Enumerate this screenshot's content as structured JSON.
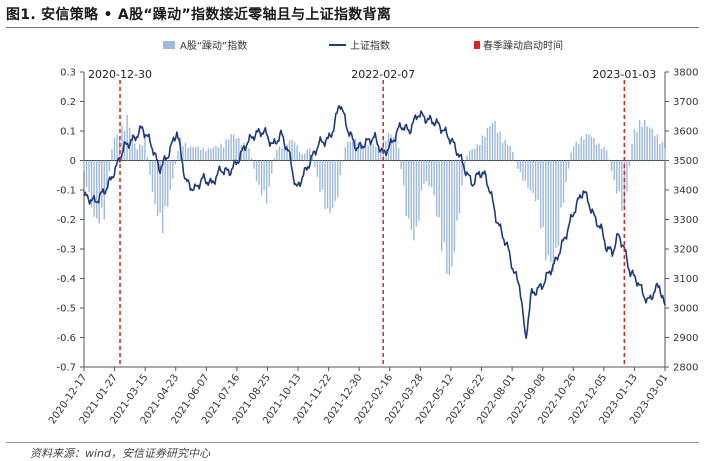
{
  "figure": {
    "title": "图1. 安信策略 • A股“躁动”指数接近零轴且与上证指数背离",
    "source": "资料来源：wind，安信证券研究中心"
  },
  "colors": {
    "bars": "#9db9dd",
    "line": "#1f3a7a",
    "event": "#e02020",
    "axis": "#555555"
  },
  "chart_data": {
    "type": "bar+line",
    "title": "安信策略 • A股“躁动”指数接近零轴且与上证指数背离",
    "legend": [
      "A股“躁动”指数",
      "上证指数",
      "春季躁动启动时间"
    ],
    "x_tick_labels": [
      "2020-12-17",
      "2021-01-27",
      "2021-03-15",
      "2021-04-23",
      "2021-06-07",
      "2021-07-16",
      "2021-08-25",
      "2021-10-13",
      "2021-11-22",
      "2021-12-30",
      "2022-02-16",
      "2022-03-28",
      "2022-05-12",
      "2022-06-22",
      "2022-08-01",
      "2022-09-08",
      "2022-10-26",
      "2022-12-05",
      "2023-01-13",
      "2023-03-01"
    ],
    "left_axis": {
      "label": "A股“躁动”指数",
      "ylim": [
        -0.7,
        0.3
      ],
      "ticks": [
        0.3,
        0.2,
        0.1,
        0,
        -0.1,
        -0.2,
        -0.3,
        -0.4,
        -0.5,
        -0.6,
        -0.7
      ]
    },
    "right_axis": {
      "label": "上证指数",
      "ylim": [
        2800,
        3800
      ],
      "ticks": [
        3800,
        3700,
        3600,
        3500,
        3400,
        3300,
        3200,
        3100,
        3000,
        2900,
        2800
      ]
    },
    "events": [
      {
        "label": "2020-12-30",
        "t": 0.062
      },
      {
        "label": "2022-02-07",
        "t": 0.515
      },
      {
        "label": "2023-01-03",
        "t": 0.93
      }
    ],
    "shanghai_index_keypoints": [
      {
        "t": 0.0,
        "v": 3380
      },
      {
        "t": 0.02,
        "v": 3360
      },
      {
        "t": 0.04,
        "v": 3410
      },
      {
        "t": 0.055,
        "v": 3475
      },
      {
        "t": 0.07,
        "v": 3550
      },
      {
        "t": 0.085,
        "v": 3570
      },
      {
        "t": 0.1,
        "v": 3610
      },
      {
        "t": 0.115,
        "v": 3560
      },
      {
        "t": 0.13,
        "v": 3470
      },
      {
        "t": 0.145,
        "v": 3520
      },
      {
        "t": 0.16,
        "v": 3600
      },
      {
        "t": 0.175,
        "v": 3430
      },
      {
        "t": 0.19,
        "v": 3400
      },
      {
        "t": 0.205,
        "v": 3440
      },
      {
        "t": 0.22,
        "v": 3420
      },
      {
        "t": 0.235,
        "v": 3470
      },
      {
        "t": 0.25,
        "v": 3460
      },
      {
        "t": 0.265,
        "v": 3500
      },
      {
        "t": 0.28,
        "v": 3560
      },
      {
        "t": 0.295,
        "v": 3590
      },
      {
        "t": 0.31,
        "v": 3600
      },
      {
        "t": 0.325,
        "v": 3550
      },
      {
        "t": 0.34,
        "v": 3590
      },
      {
        "t": 0.355,
        "v": 3510
      },
      {
        "t": 0.365,
        "v": 3400
      },
      {
        "t": 0.375,
        "v": 3440
      },
      {
        "t": 0.39,
        "v": 3500
      },
      {
        "t": 0.405,
        "v": 3560
      },
      {
        "t": 0.42,
        "v": 3570
      },
      {
        "t": 0.43,
        "v": 3610
      },
      {
        "t": 0.44,
        "v": 3700
      },
      {
        "t": 0.455,
        "v": 3600
      },
      {
        "t": 0.47,
        "v": 3540
      },
      {
        "t": 0.485,
        "v": 3560
      },
      {
        "t": 0.5,
        "v": 3580
      },
      {
        "t": 0.515,
        "v": 3520
      },
      {
        "t": 0.53,
        "v": 3560
      },
      {
        "t": 0.545,
        "v": 3620
      },
      {
        "t": 0.56,
        "v": 3600
      },
      {
        "t": 0.575,
        "v": 3660
      },
      {
        "t": 0.59,
        "v": 3640
      },
      {
        "t": 0.605,
        "v": 3630
      },
      {
        "t": 0.62,
        "v": 3600
      },
      {
        "t": 0.635,
        "v": 3560
      },
      {
        "t": 0.65,
        "v": 3500
      },
      {
        "t": 0.66,
        "v": 3450
      },
      {
        "t": 0.67,
        "v": 3420
      },
      {
        "t": 0.68,
        "v": 3460
      },
      {
        "t": 0.69,
        "v": 3450
      },
      {
        "t": 0.7,
        "v": 3390
      },
      {
        "t": 0.71,
        "v": 3300
      },
      {
        "t": 0.72,
        "v": 3250
      },
      {
        "t": 0.73,
        "v": 3200
      },
      {
        "t": 0.74,
        "v": 3120
      },
      {
        "t": 0.75,
        "v": 3080
      },
      {
        "t": 0.76,
        "v": 2890
      },
      {
        "t": 0.77,
        "v": 3050
      },
      {
        "t": 0.78,
        "v": 3060
      },
      {
        "t": 0.79,
        "v": 3080
      },
      {
        "t": 0.8,
        "v": 3120
      },
      {
        "t": 0.81,
        "v": 3150
      },
      {
        "t": 0.82,
        "v": 3200
      },
      {
        "t": 0.83,
        "v": 3250
      },
      {
        "t": 0.84,
        "v": 3310
      },
      {
        "t": 0.85,
        "v": 3360
      },
      {
        "t": 0.86,
        "v": 3400
      },
      {
        "t": 0.87,
        "v": 3350
      },
      {
        "t": 0.88,
        "v": 3300
      },
      {
        "t": 0.89,
        "v": 3270
      },
      {
        "t": 0.9,
        "v": 3200
      },
      {
        "t": 0.91,
        "v": 3190
      },
      {
        "t": 0.92,
        "v": 3250
      },
      {
        "t": 0.93,
        "v": 3200
      },
      {
        "t": 0.94,
        "v": 3120
      },
      {
        "t": 0.95,
        "v": 3100
      },
      {
        "t": 0.96,
        "v": 3060
      },
      {
        "t": 0.97,
        "v": 3020
      },
      {
        "t": 0.98,
        "v": 3050
      },
      {
        "t": 0.99,
        "v": 3080
      },
      {
        "t": 1.0,
        "v": 3000
      }
    ],
    "boom_index_keypoints": [
      {
        "t": 0.0,
        "v": -0.05
      },
      {
        "t": 0.02,
        "v": -0.23
      },
      {
        "t": 0.035,
        "v": -0.2
      },
      {
        "t": 0.05,
        "v": 0.08
      },
      {
        "t": 0.062,
        "v": 0.1
      },
      {
        "t": 0.075,
        "v": 0.16
      },
      {
        "t": 0.09,
        "v": 0.04
      },
      {
        "t": 0.105,
        "v": 0.08
      },
      {
        "t": 0.12,
        "v": -0.15
      },
      {
        "t": 0.135,
        "v": -0.25
      },
      {
        "t": 0.15,
        "v": -0.1
      },
      {
        "t": 0.165,
        "v": 0.08
      },
      {
        "t": 0.18,
        "v": 0.05
      },
      {
        "t": 0.195,
        "v": 0.05
      },
      {
        "t": 0.21,
        "v": 0.04
      },
      {
        "t": 0.225,
        "v": 0.05
      },
      {
        "t": 0.24,
        "v": 0.06
      },
      {
        "t": 0.255,
        "v": 0.1
      },
      {
        "t": 0.27,
        "v": 0.07
      },
      {
        "t": 0.285,
        "v": 0.04
      },
      {
        "t": 0.3,
        "v": -0.1
      },
      {
        "t": 0.315,
        "v": -0.15
      },
      {
        "t": 0.33,
        "v": 0.04
      },
      {
        "t": 0.345,
        "v": 0.06
      },
      {
        "t": 0.36,
        "v": 0.08
      },
      {
        "t": 0.375,
        "v": 0.02
      },
      {
        "t": 0.39,
        "v": 0.05
      },
      {
        "t": 0.405,
        "v": -0.1
      },
      {
        "t": 0.42,
        "v": -0.2
      },
      {
        "t": 0.435,
        "v": -0.15
      },
      {
        "t": 0.45,
        "v": 0.06
      },
      {
        "t": 0.465,
        "v": 0.08
      },
      {
        "t": 0.48,
        "v": 0.06
      },
      {
        "t": 0.495,
        "v": 0.06
      },
      {
        "t": 0.51,
        "v": 0.05
      },
      {
        "t": 0.525,
        "v": 0.1
      },
      {
        "t": 0.54,
        "v": 0.08
      },
      {
        "t": 0.555,
        "v": -0.2
      },
      {
        "t": 0.57,
        "v": -0.3
      },
      {
        "t": 0.585,
        "v": -0.08
      },
      {
        "t": 0.6,
        "v": -0.1
      },
      {
        "t": 0.615,
        "v": -0.3
      },
      {
        "t": 0.63,
        "v": -0.45
      },
      {
        "t": 0.645,
        "v": -0.2
      },
      {
        "t": 0.66,
        "v": 0.03
      },
      {
        "t": 0.675,
        "v": 0.05
      },
      {
        "t": 0.69,
        "v": 0.1
      },
      {
        "t": 0.705,
        "v": 0.15
      },
      {
        "t": 0.72,
        "v": 0.08
      },
      {
        "t": 0.735,
        "v": 0.05
      },
      {
        "t": 0.75,
        "v": -0.05
      },
      {
        "t": 0.765,
        "v": -0.1
      },
      {
        "t": 0.78,
        "v": -0.15
      },
      {
        "t": 0.795,
        "v": -0.35
      },
      {
        "t": 0.81,
        "v": -0.4
      },
      {
        "t": 0.825,
        "v": -0.15
      },
      {
        "t": 0.84,
        "v": 0.05
      },
      {
        "t": 0.855,
        "v": 0.08
      },
      {
        "t": 0.87,
        "v": 0.1
      },
      {
        "t": 0.885,
        "v": 0.06
      },
      {
        "t": 0.9,
        "v": 0.04
      },
      {
        "t": 0.915,
        "v": -0.1
      },
      {
        "t": 0.93,
        "v": -0.2
      },
      {
        "t": 0.945,
        "v": 0.1
      },
      {
        "t": 0.96,
        "v": 0.15
      },
      {
        "t": 0.975,
        "v": 0.12
      },
      {
        "t": 0.99,
        "v": 0.08
      },
      {
        "t": 1.0,
        "v": 0.05
      }
    ]
  }
}
